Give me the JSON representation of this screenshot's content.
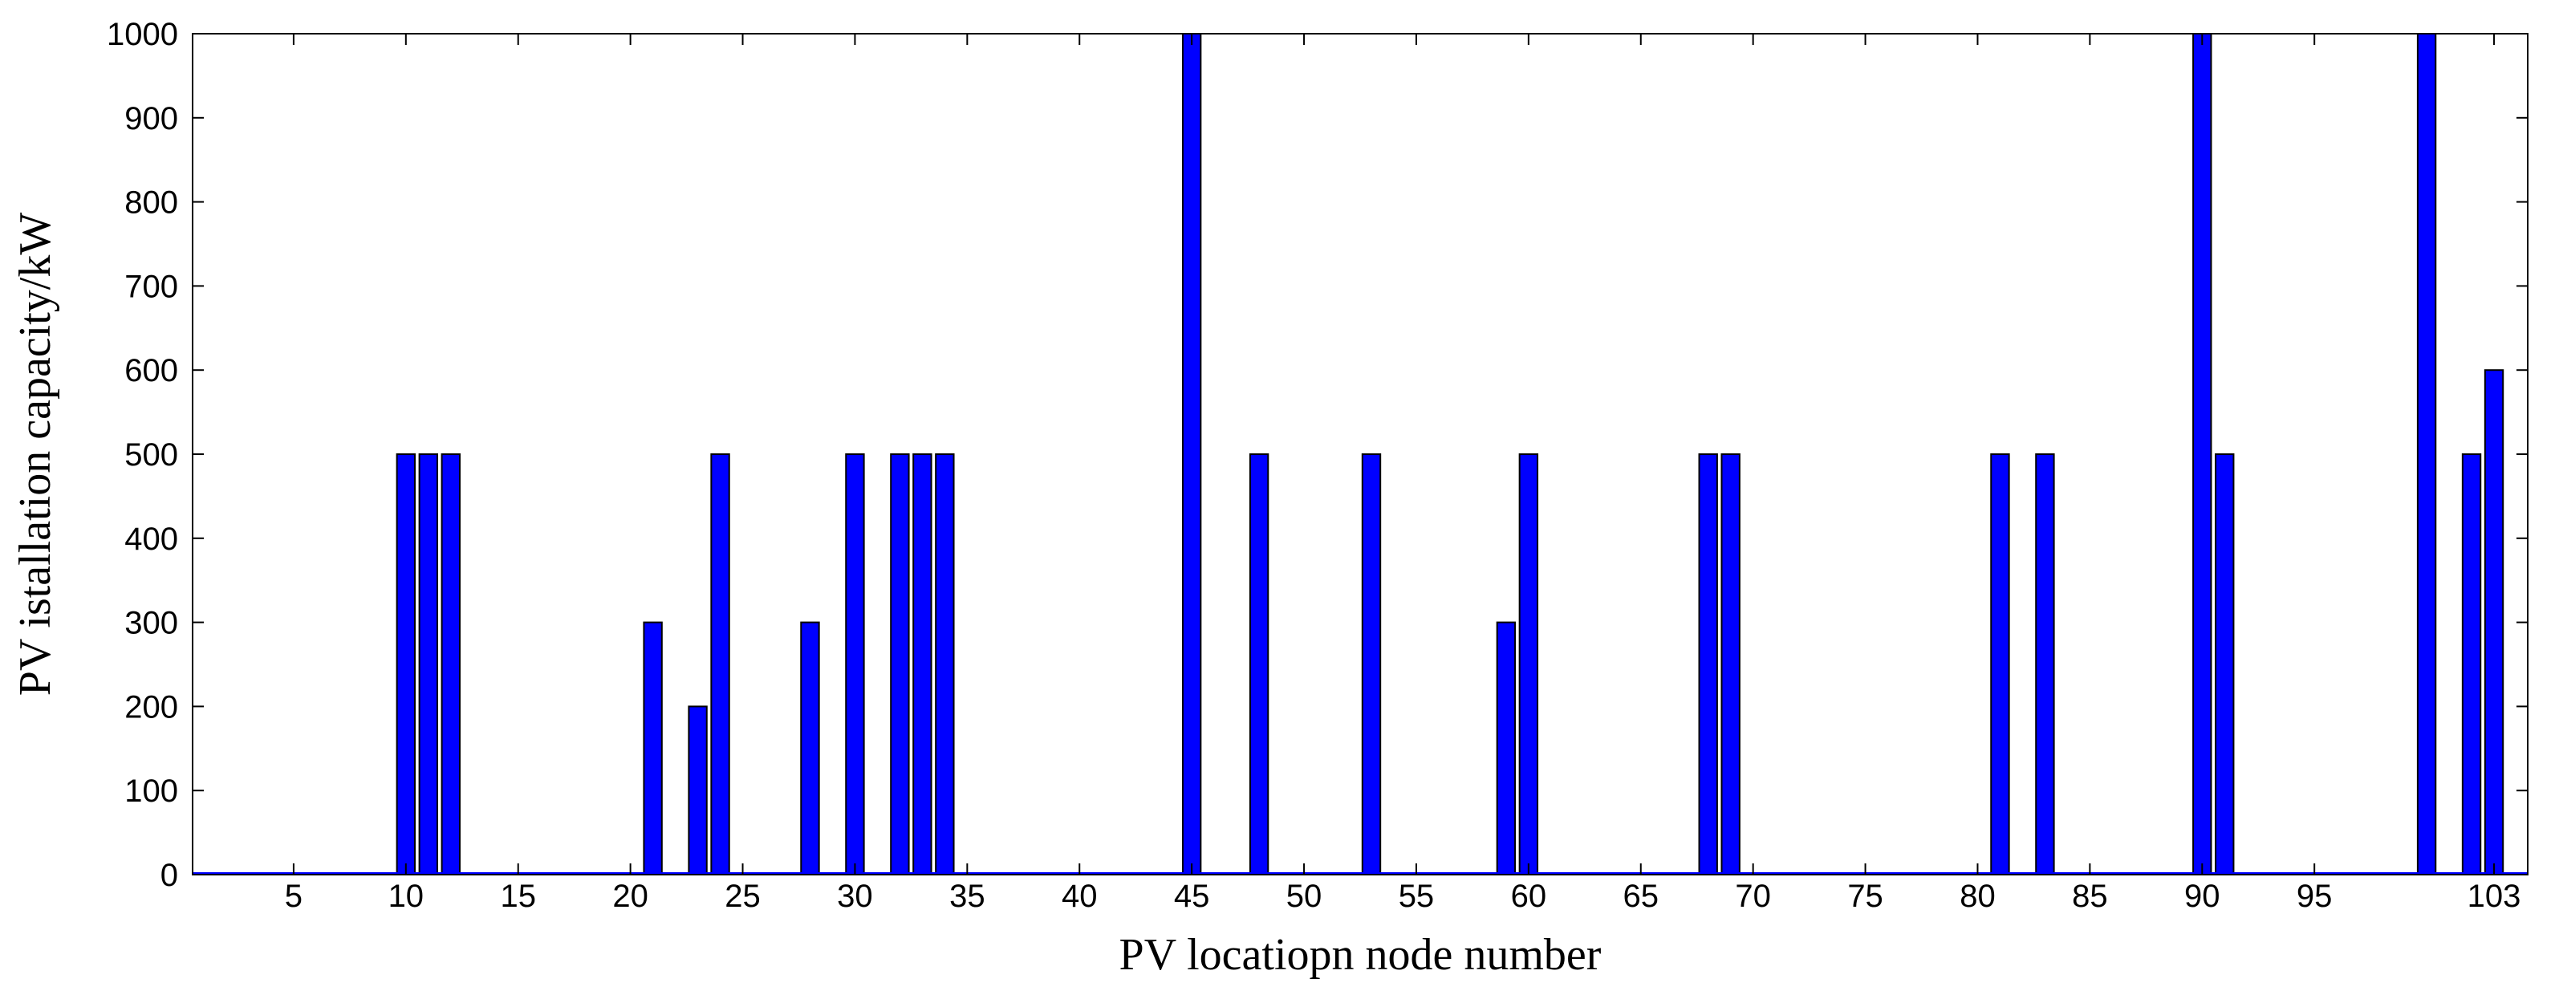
{
  "chart_data": {
    "type": "bar",
    "title": "",
    "xlabel": "PV locatiopn node number",
    "ylabel": "PV istallation capacity/kW",
    "xlim": [
      0.5,
      104.5
    ],
    "ylim": [
      0,
      1000
    ],
    "x_ticks": [
      5,
      10,
      15,
      20,
      25,
      30,
      35,
      40,
      45,
      50,
      55,
      60,
      65,
      70,
      75,
      80,
      85,
      90,
      95,
      103
    ],
    "y_ticks": [
      0,
      100,
      200,
      300,
      400,
      500,
      600,
      700,
      800,
      900,
      1000
    ],
    "grid": false,
    "bar_color": "#0000ff",
    "bar_edge_color": "#000000",
    "bars": [
      {
        "x": 10,
        "y": 500
      },
      {
        "x": 11,
        "y": 500
      },
      {
        "x": 12,
        "y": 500
      },
      {
        "x": 21,
        "y": 300
      },
      {
        "x": 23,
        "y": 200
      },
      {
        "x": 24,
        "y": 500
      },
      {
        "x": 28,
        "y": 300
      },
      {
        "x": 30,
        "y": 500
      },
      {
        "x": 32,
        "y": 500
      },
      {
        "x": 33,
        "y": 500
      },
      {
        "x": 34,
        "y": 500
      },
      {
        "x": 45,
        "y": 1000
      },
      {
        "x": 48,
        "y": 500
      },
      {
        "x": 53,
        "y": 500
      },
      {
        "x": 59,
        "y": 300
      },
      {
        "x": 60,
        "y": 500
      },
      {
        "x": 68,
        "y": 500
      },
      {
        "x": 69,
        "y": 500
      },
      {
        "x": 81,
        "y": 500
      },
      {
        "x": 83,
        "y": 500
      },
      {
        "x": 90,
        "y": 1000
      },
      {
        "x": 91,
        "y": 500
      },
      {
        "x": 100,
        "y": 1000
      },
      {
        "x": 102,
        "y": 500
      },
      {
        "x": 103,
        "y": 600
      }
    ]
  }
}
